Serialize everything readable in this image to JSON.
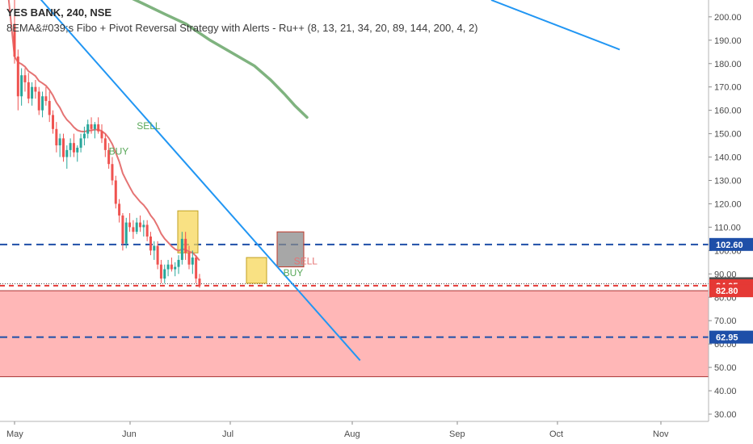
{
  "header": {
    "symbol_line": "YES BANK, 240, NSE",
    "study_line": "8EMA&#039;s Fibo + Pivot Reversal Strategy with Alerts - Ru++ (8, 13, 21, 34, 20, 89, 144, 200, 4, 2)"
  },
  "chart_data": {
    "type": "candlestick",
    "y_axis": {
      "ticks": [
        30,
        40,
        50,
        60,
        70,
        80,
        90,
        100,
        110,
        120,
        130,
        140,
        150,
        160,
        170,
        180,
        190,
        200
      ],
      "ylim": [
        26,
        205
      ],
      "side": "right"
    },
    "x_axis": {
      "ticks": [
        "May",
        "Jun",
        "Jul",
        "Aug",
        "Sep",
        "Oct",
        "Nov"
      ]
    },
    "price_badges": [
      {
        "value": "102.60",
        "color": "#1e4fa8",
        "line_style": "dashed"
      },
      {
        "value": "85.80",
        "color": "#4d4d4d",
        "line_style": "dotted"
      },
      {
        "value": "84.95",
        "color": "#e53935",
        "line_style": "dashed"
      },
      {
        "value": "82.80",
        "color": "#e53935",
        "line_style": "solid"
      },
      {
        "value": "62.95",
        "color": "#1e4fa8",
        "line_style": "dashed"
      }
    ],
    "zone": {
      "from": 46,
      "to": 82.8,
      "color": "#ffb3b3"
    },
    "signals": [
      {
        "label": "SELL",
        "color": "#5aa85a"
      },
      {
        "label": "BUY",
        "color": "#5aa85a"
      },
      {
        "label": "SELL",
        "color": "#e57373"
      },
      {
        "label": "BUY",
        "color": "#5aa85a"
      }
    ],
    "colors": {
      "up": "#26a69a",
      "down": "#ef5350",
      "ema_fast": "#e57373",
      "ema_slow": "#7fb37f",
      "trend": "#2196f3"
    },
    "candles": [
      [
        197,
        208,
        180,
        183
      ],
      [
        183,
        186,
        160,
        166
      ],
      [
        166,
        178,
        162,
        175
      ],
      [
        175,
        178,
        168,
        172
      ],
      [
        172,
        176,
        163,
        165
      ],
      [
        165,
        172,
        162,
        170
      ],
      [
        170,
        173,
        165,
        168
      ],
      [
        168,
        170,
        158,
        160
      ],
      [
        160,
        168,
        157,
        166
      ],
      [
        166,
        170,
        162,
        164
      ],
      [
        164,
        168,
        155,
        158
      ],
      [
        158,
        160,
        150,
        152
      ],
      [
        152,
        155,
        142,
        145
      ],
      [
        145,
        150,
        140,
        148
      ],
      [
        148,
        150,
        138,
        140
      ],
      [
        140,
        145,
        135,
        143
      ],
      [
        143,
        148,
        140,
        146
      ],
      [
        146,
        150,
        140,
        142
      ],
      [
        142,
        145,
        138,
        144
      ],
      [
        144,
        150,
        142,
        148
      ],
      [
        148,
        153,
        145,
        150
      ],
      [
        150,
        156,
        148,
        154
      ],
      [
        154,
        157,
        150,
        152
      ],
      [
        152,
        155,
        148,
        154
      ],
      [
        154,
        157,
        150,
        151
      ],
      [
        151,
        154,
        146,
        148
      ],
      [
        148,
        150,
        140,
        143
      ],
      [
        143,
        146,
        135,
        137
      ],
      [
        137,
        140,
        128,
        130
      ],
      [
        130,
        132,
        118,
        120
      ],
      [
        120,
        122,
        112,
        115
      ],
      [
        115,
        116,
        100,
        103
      ],
      [
        103,
        114,
        101,
        112
      ],
      [
        112,
        116,
        108,
        110
      ],
      [
        110,
        113,
        105,
        108
      ],
      [
        108,
        114,
        107,
        112
      ],
      [
        112,
        115,
        108,
        110
      ],
      [
        110,
        113,
        106,
        111
      ],
      [
        111,
        113,
        104,
        106
      ],
      [
        106,
        108,
        98,
        100
      ],
      [
        100,
        104,
        96,
        102
      ],
      [
        102,
        104,
        92,
        94
      ],
      [
        94,
        96,
        86,
        88
      ],
      [
        88,
        94,
        86,
        92
      ],
      [
        92,
        96,
        89,
        94
      ],
      [
        94,
        97,
        91,
        92
      ],
      [
        92,
        95,
        89,
        93
      ],
      [
        93,
        98,
        90,
        96
      ],
      [
        96,
        108,
        94,
        105
      ],
      [
        105,
        108,
        96,
        99
      ],
      [
        99,
        102,
        92,
        94
      ],
      [
        94,
        100,
        90,
        97
      ],
      [
        97,
        98,
        86,
        88
      ],
      [
        88,
        90,
        84,
        85
      ]
    ]
  }
}
